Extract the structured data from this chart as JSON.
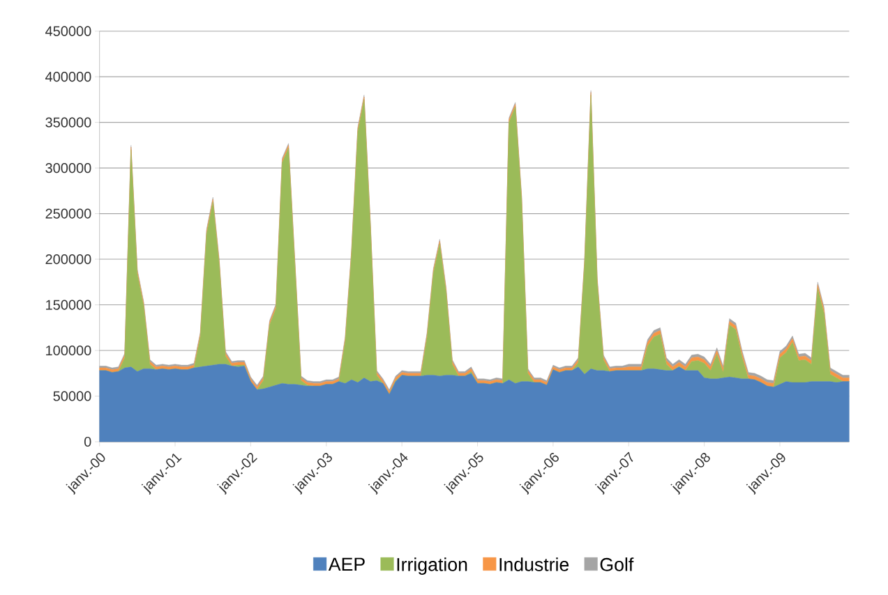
{
  "chart_data": {
    "type": "area",
    "stacked": true,
    "grid": "y",
    "legend": "bottom",
    "categories": [
      "janv.-00",
      null,
      null,
      null,
      null,
      null,
      null,
      null,
      null,
      null,
      null,
      null,
      "janv.-01",
      null,
      null,
      null,
      null,
      null,
      null,
      null,
      null,
      null,
      null,
      null,
      "janv.-02",
      null,
      null,
      null,
      null,
      null,
      null,
      null,
      null,
      null,
      null,
      null,
      "janv.-03",
      null,
      null,
      null,
      null,
      null,
      null,
      null,
      null,
      null,
      null,
      null,
      "janv.-04",
      null,
      null,
      null,
      null,
      null,
      null,
      null,
      null,
      null,
      null,
      null,
      "janv.-05",
      null,
      null,
      null,
      null,
      null,
      null,
      null,
      null,
      null,
      null,
      null,
      "janv.-06",
      null,
      null,
      null,
      null,
      null,
      null,
      null,
      null,
      null,
      null,
      null,
      "janv.-07",
      null,
      null,
      null,
      null,
      null,
      null,
      null,
      null,
      null,
      null,
      null,
      "janv.-08",
      null,
      null,
      null,
      null,
      null,
      null,
      null,
      null,
      null,
      null,
      null,
      "janv.-09",
      null,
      null,
      null,
      null,
      null,
      null,
      null,
      null,
      null,
      null,
      null
    ],
    "ylim": [
      0,
      450000
    ],
    "yticks": [
      0,
      50000,
      100000,
      150000,
      200000,
      250000,
      300000,
      350000,
      400000,
      450000
    ],
    "series": [
      {
        "name": "AEP",
        "color": "#4f81bd",
        "values": [
          78000,
          78000,
          76000,
          77000,
          81000,
          82000,
          77000,
          80000,
          80000,
          79000,
          80000,
          79000,
          80000,
          79000,
          79000,
          81000,
          82000,
          83000,
          84000,
          85000,
          85000,
          83000,
          82000,
          83000,
          66000,
          57000,
          58000,
          60000,
          62000,
          64000,
          63000,
          63000,
          62000,
          61000,
          61000,
          61000,
          63000,
          63000,
          66000,
          64000,
          68000,
          65000,
          70000,
          66000,
          67000,
          64000,
          52000,
          66000,
          73000,
          72000,
          72000,
          72000,
          73000,
          73000,
          72000,
          73000,
          73000,
          72000,
          72000,
          75000,
          64000,
          64000,
          63000,
          65000,
          64000,
          68000,
          64000,
          66000,
          66000,
          65000,
          65000,
          62000,
          79000,
          76000,
          78000,
          78000,
          82000,
          74000,
          80000,
          78000,
          78000,
          77000,
          78000,
          78000,
          78000,
          78000,
          78000,
          80000,
          80000,
          79000,
          78000,
          78000,
          82000,
          78000,
          78000,
          78000,
          70000,
          69000,
          69000,
          70000,
          71000,
          70000,
          69000,
          69000,
          68000,
          65000,
          61000,
          60000,
          63000,
          66000,
          65000,
          65000,
          65000,
          66000,
          66000,
          66000,
          66000,
          65000,
          66000,
          66000
        ]
      },
      {
        "name": "Irrigation",
        "color": "#9bbb59",
        "values": [
          0,
          0,
          0,
          0,
          11000,
          238000,
          107000,
          69000,
          5000,
          0,
          0,
          0,
          0,
          0,
          0,
          0,
          33000,
          145000,
          179000,
          110000,
          9000,
          0,
          2000,
          1000,
          0,
          0,
          9000,
          68000,
          84000,
          242000,
          259000,
          132000,
          5000,
          1000,
          0,
          0,
          0,
          0,
          0,
          46000,
          137000,
          275000,
          305000,
          169000,
          6000,
          0,
          0,
          1000,
          0,
          0,
          0,
          0,
          42000,
          112000,
          145000,
          92000,
          12000,
          0,
          0,
          2000,
          0,
          0,
          0,
          0,
          0,
          282000,
          303000,
          199000,
          9000,
          0,
          0,
          0,
          0,
          0,
          0,
          0,
          5000,
          121000,
          300000,
          97000,
          12000,
          0,
          0,
          0,
          0,
          0,
          0,
          25000,
          35000,
          39000,
          7000,
          0,
          1000,
          0,
          10000,
          11000,
          16000,
          9000,
          27000,
          6000,
          57000,
          53000,
          24000,
          0,
          0,
          0,
          0,
          0,
          29000,
          32000,
          44000,
          24000,
          25000,
          19000,
          102000,
          75000,
          8000,
          5000,
          0,
          0
        ]
      },
      {
        "name": "Industrie",
        "color": "#f79646",
        "values": [
          3000,
          3000,
          3000,
          3000,
          3000,
          3000,
          3000,
          3000,
          3000,
          3000,
          3000,
          3000,
          3000,
          3000,
          3000,
          3000,
          3000,
          3000,
          3000,
          3000,
          3000,
          3000,
          3000,
          3000,
          3000,
          3000,
          3000,
          3000,
          3000,
          3000,
          3000,
          3000,
          3000,
          3000,
          3000,
          3000,
          3000,
          3000,
          3000,
          3000,
          3000,
          3000,
          3000,
          3000,
          3000,
          3000,
          3000,
          3000,
          3000,
          3000,
          3000,
          3000,
          3000,
          3000,
          3000,
          3000,
          3000,
          3000,
          3000,
          3000,
          3000,
          3000,
          3000,
          3000,
          3000,
          3000,
          3000,
          3000,
          3000,
          3000,
          3000,
          3000,
          3000,
          3000,
          3000,
          3000,
          3000,
          3000,
          3000,
          3000,
          3000,
          3000,
          3000,
          3000,
          4000,
          4000,
          4000,
          4000,
          4000,
          4000,
          4000,
          4000,
          4000,
          4000,
          4000,
          4000,
          4000,
          4000,
          4000,
          4000,
          4000,
          4000,
          4000,
          4000,
          4000,
          4000,
          4000,
          4000,
          4000,
          4000,
          4000,
          4000,
          4000,
          4000,
          4000,
          4000,
          4000,
          4000,
          4000,
          4000
        ]
      },
      {
        "name": "Golf",
        "color": "#a5a5a5",
        "values": [
          2000,
          2000,
          2000,
          2000,
          2000,
          2000,
          2000,
          2000,
          2000,
          2000,
          2000,
          2000,
          2000,
          2000,
          2000,
          2000,
          2000,
          2000,
          2000,
          2000,
          2000,
          2000,
          2000,
          2000,
          2000,
          2000,
          2000,
          2000,
          2000,
          2000,
          2000,
          2000,
          2000,
          2000,
          2000,
          2000,
          2000,
          2000,
          2000,
          2000,
          2000,
          2000,
          2000,
          2000,
          2000,
          2000,
          2000,
          2000,
          2000,
          2000,
          2000,
          2000,
          2000,
          2000,
          2000,
          2000,
          2000,
          2000,
          2000,
          2000,
          2000,
          2000,
          2000,
          2000,
          2000,
          2000,
          2000,
          2000,
          2000,
          2000,
          2000,
          2000,
          2000,
          2000,
          2000,
          2000,
          2000,
          2000,
          2000,
          2000,
          2000,
          2000,
          2000,
          2000,
          3000,
          3000,
          3000,
          3000,
          3000,
          3000,
          3000,
          3000,
          3000,
          3000,
          3000,
          3000,
          3000,
          3000,
          3000,
          3000,
          3000,
          3000,
          3000,
          3000,
          3000,
          3000,
          3000,
          3000,
          3000,
          3000,
          3000,
          3000,
          3000,
          3000,
          3000,
          3000,
          3000,
          3000,
          3000,
          3000
        ]
      }
    ]
  }
}
